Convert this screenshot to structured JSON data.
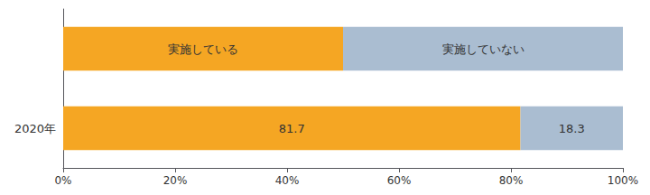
{
  "chart_data": {
    "type": "bar",
    "orientation": "horizontal",
    "stacked": true,
    "categories": [
      null,
      "2020年"
    ],
    "series": [
      {
        "color": "#F5A623",
        "values": [
          50.0,
          81.7
        ],
        "value_labels": [
          "実施している",
          "81.7"
        ]
      },
      {
        "color": "#AABDD1",
        "values": [
          50.0,
          18.3
        ],
        "value_labels": [
          "実施していない",
          "18.3"
        ]
      }
    ],
    "xlim": [
      0,
      100
    ],
    "xticks": [
      {
        "value": 0,
        "label": "0%"
      },
      {
        "value": 20,
        "label": "20%"
      },
      {
        "value": 40,
        "label": "40%"
      },
      {
        "value": 60,
        "label": "60%"
      },
      {
        "value": 80,
        "label": "80%"
      },
      {
        "value": 100,
        "label": "100%"
      }
    ],
    "data_labels": true,
    "grid": false
  }
}
